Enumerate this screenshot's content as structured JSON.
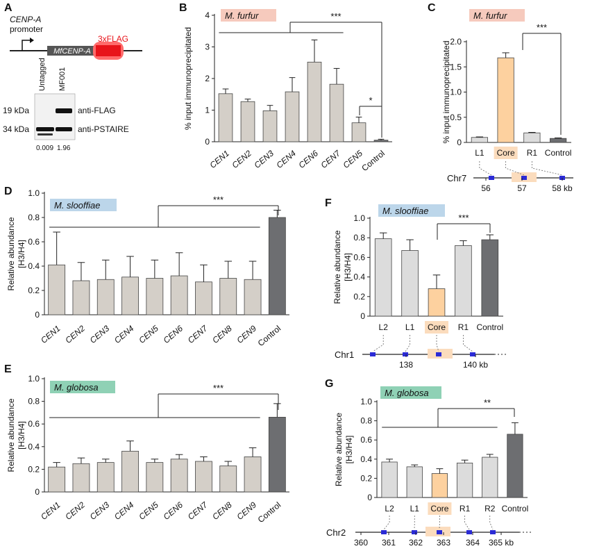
{
  "panel_letters": [
    "A",
    "B",
    "C",
    "D",
    "E",
    "F",
    "G"
  ],
  "colors": {
    "bar_grey": "#d4cfc8",
    "bar_dark": "#6d6e71",
    "bar_core": "#fdd19f",
    "bar_light": "#dcdcdc",
    "tag_furfur": "#f6cabd",
    "tag_slooffiae": "#bcd6ea",
    "tag_globosa": "#8fd1b5",
    "core_highlight": "#fbdcbd",
    "flag_red": "#e8141a",
    "locus_blue": "#2b2bd6"
  },
  "panel_a": {
    "promoter_label_line1": "CENP-A",
    "promoter_label_line2": "promoter",
    "gene_label": "MfCENP-A",
    "tag_label": "3xFLAG",
    "lane_labels": [
      "Untagged",
      "MF001"
    ],
    "size_markers": [
      "19 kDa",
      "34 kDa"
    ],
    "antibodies": [
      "anti-FLAG",
      "anti-PSTAIRE"
    ],
    "quantification": [
      "0.009",
      "1.96"
    ]
  },
  "chart_data": [
    {
      "panel": "B",
      "type": "bar",
      "species_tag": "M. furfur",
      "ylabel": "% input immunoprecipitated",
      "categories": [
        "CEN1",
        "CEN2",
        "CEN3",
        "CEN4",
        "CEN6",
        "CEN7",
        "CEN5",
        "Control"
      ],
      "values": [
        1.52,
        1.27,
        0.98,
        1.58,
        2.52,
        1.82,
        0.6,
        0.05
      ],
      "errors": [
        0.15,
        0.08,
        0.17,
        0.45,
        0.7,
        0.5,
        0.18,
        0.03
      ],
      "ylim": [
        0,
        4
      ],
      "yticks": [
        "0",
        "1",
        "2",
        "3",
        "4"
      ],
      "significance": [
        "***",
        "*"
      ]
    },
    {
      "panel": "C",
      "type": "bar",
      "species_tag": "M. furfur",
      "ylabel": "% input immunoprecipitated",
      "categories": [
        "L1",
        "Core",
        "R1",
        "Control"
      ],
      "values": [
        0.1,
        1.68,
        0.19,
        0.08
      ],
      "errors": [
        0.01,
        0.1,
        0.01,
        0.01
      ],
      "ylim": [
        0,
        2.0
      ],
      "yticks": [
        "0",
        "0.5",
        "1.0",
        "1.5",
        "2.0"
      ],
      "significance": [
        "***"
      ],
      "chromosome": "Chr7",
      "coord_ticks": [
        "56",
        "57",
        "58 kb"
      ]
    },
    {
      "panel": "D",
      "type": "bar",
      "species_tag": "M. slooffiae",
      "ylabel": "Relative abundance",
      "ylabel2": "[H3/H4]",
      "categories": [
        "CEN1",
        "CEN2",
        "CEN3",
        "CEN4",
        "CEN5",
        "CEN6",
        "CEN7",
        "CEN8",
        "CEN9",
        "Control"
      ],
      "values": [
        0.41,
        0.28,
        0.29,
        0.31,
        0.3,
        0.32,
        0.27,
        0.3,
        0.29,
        0.8
      ],
      "errors": [
        0.27,
        0.15,
        0.16,
        0.17,
        0.15,
        0.19,
        0.14,
        0.14,
        0.15,
        0.06
      ],
      "ylim": [
        0,
        1.0
      ],
      "yticks": [
        "0",
        "0.2",
        "0.4",
        "0.6",
        "0.8",
        "1.0"
      ],
      "significance": [
        "***"
      ]
    },
    {
      "panel": "E",
      "type": "bar",
      "species_tag": "M. globosa",
      "ylabel": "Relative abundance",
      "ylabel2": "[H3/H4]",
      "categories": [
        "CEN1",
        "CEN2",
        "CEN3",
        "CEN4",
        "CEN5",
        "CEN6",
        "CEN7",
        "CEN8",
        "CEN9",
        "Control"
      ],
      "values": [
        0.22,
        0.25,
        0.26,
        0.36,
        0.26,
        0.29,
        0.27,
        0.23,
        0.31,
        0.66
      ],
      "errors": [
        0.04,
        0.05,
        0.03,
        0.09,
        0.03,
        0.04,
        0.04,
        0.04,
        0.08,
        0.12
      ],
      "ylim": [
        0,
        1.0
      ],
      "yticks": [
        "0",
        "0.2",
        "0.4",
        "0.6",
        "0.8",
        "1.0"
      ],
      "significance": [
        "***"
      ]
    },
    {
      "panel": "F",
      "type": "bar",
      "species_tag": "M. slooffiae",
      "ylabel": "Relative abundance",
      "ylabel2": "[H3/H4]",
      "categories": [
        "L2",
        "L1",
        "Core",
        "R1",
        "Control"
      ],
      "values": [
        0.79,
        0.67,
        0.28,
        0.72,
        0.78
      ],
      "errors": [
        0.06,
        0.11,
        0.14,
        0.05,
        0.05
      ],
      "ylim": [
        0,
        1.0
      ],
      "yticks": [
        "0",
        "0.2",
        "0.4",
        "0.6",
        "0.8",
        "1.0"
      ],
      "significance": [
        "***"
      ],
      "chromosome": "Chr1",
      "coord_ticks": [
        "138",
        "140 kb"
      ]
    },
    {
      "panel": "G",
      "type": "bar",
      "species_tag": "M. globosa",
      "ylabel": "Relative abundance",
      "ylabel2": "[H3/H4]",
      "categories": [
        "L2",
        "L1",
        "Core",
        "R1",
        "R2",
        "Control"
      ],
      "values": [
        0.37,
        0.32,
        0.25,
        0.36,
        0.42,
        0.66
      ],
      "errors": [
        0.03,
        0.02,
        0.05,
        0.03,
        0.03,
        0.12
      ],
      "ylim": [
        0,
        1.0
      ],
      "yticks": [
        "0",
        "0.2",
        "0.4",
        "0.6",
        "0.8",
        "1.0"
      ],
      "significance": [
        "**"
      ],
      "chromosome": "Chr2",
      "coord_ticks": [
        "360",
        "361",
        "362",
        "363",
        "364",
        "365 kb"
      ]
    }
  ]
}
